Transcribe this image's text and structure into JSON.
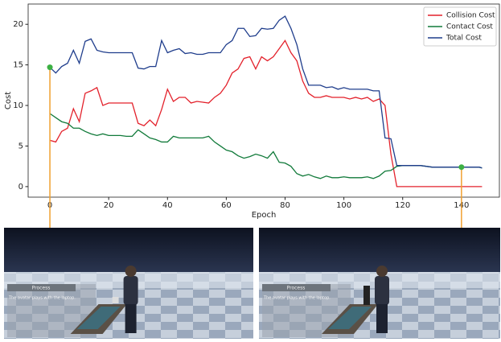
{
  "chart_data": {
    "type": "line",
    "x_label": "Epoch",
    "y_label": "Cost",
    "x": [
      0,
      2,
      4,
      6,
      8,
      10,
      12,
      14,
      16,
      18,
      20,
      22,
      24,
      26,
      28,
      30,
      32,
      34,
      36,
      38,
      40,
      42,
      44,
      46,
      48,
      50,
      52,
      54,
      56,
      58,
      60,
      62,
      64,
      66,
      68,
      70,
      72,
      74,
      76,
      78,
      80,
      82,
      84,
      86,
      88,
      90,
      92,
      94,
      96,
      98,
      100,
      102,
      104,
      106,
      108,
      110,
      112,
      114,
      116,
      118,
      120,
      122,
      124,
      126,
      128,
      130,
      132,
      134,
      136,
      138,
      140,
      142,
      144,
      146,
      147
    ],
    "series": [
      {
        "name": "Collision Cost",
        "color": "#e3212b",
        "values": [
          5.7,
          5.5,
          6.8,
          7.2,
          9.6,
          8.0,
          11.5,
          11.8,
          12.2,
          10.0,
          10.3,
          10.3,
          10.3,
          10.3,
          10.3,
          7.8,
          7.5,
          8.2,
          7.5,
          9.5,
          12.0,
          10.5,
          11.0,
          11.0,
          10.3,
          10.5,
          10.4,
          10.3,
          11.0,
          11.5,
          12.5,
          14.0,
          14.5,
          15.8,
          16.0,
          14.5,
          16.0,
          15.5,
          16.0,
          17.0,
          18.0,
          16.5,
          15.5,
          13.0,
          11.5,
          11.0,
          11.0,
          11.2,
          11.0,
          11.0,
          11.0,
          10.8,
          11.0,
          10.8,
          11.0,
          10.5,
          10.8,
          10.0,
          4.0,
          0,
          0,
          0,
          0,
          0,
          0,
          0,
          0,
          0,
          0,
          0,
          0,
          0,
          0,
          0,
          0
        ]
      },
      {
        "name": "Contact Cost",
        "color": "#117a3a",
        "values": [
          9.0,
          8.5,
          8.0,
          7.8,
          7.2,
          7.2,
          6.8,
          6.5,
          6.3,
          6.5,
          6.3,
          6.3,
          6.3,
          6.2,
          6.2,
          7.0,
          6.5,
          6.0,
          5.8,
          5.5,
          5.5,
          6.2,
          6.0,
          6.0,
          6.0,
          6.0,
          6.0,
          6.2,
          5.5,
          5.0,
          4.5,
          4.3,
          3.8,
          3.5,
          3.7,
          4.0,
          3.8,
          3.5,
          4.3,
          3.0,
          2.9,
          2.5,
          1.6,
          1.3,
          1.5,
          1.2,
          1.0,
          1.3,
          1.1,
          1.1,
          1.2,
          1.1,
          1.1,
          1.1,
          1.2,
          1.0,
          1.3,
          1.9,
          2.0,
          2.5,
          2.6,
          2.6,
          2.6,
          2.6,
          2.5,
          2.4,
          2.4,
          2.4,
          2.4,
          2.4,
          2.4,
          2.4,
          2.4,
          2.4,
          2.3
        ]
      },
      {
        "name": "Total Cost",
        "color": "#1f3d8c",
        "values": [
          14.7,
          14.0,
          14.8,
          15.2,
          16.8,
          15.2,
          17.9,
          18.2,
          16.8,
          16.6,
          16.5,
          16.5,
          16.5,
          16.5,
          16.5,
          14.6,
          14.5,
          14.8,
          14.8,
          18.0,
          16.5,
          16.8,
          17.0,
          16.4,
          16.5,
          16.3,
          16.3,
          16.5,
          16.5,
          16.5,
          17.5,
          18.0,
          19.5,
          19.5,
          18.5,
          18.6,
          19.5,
          19.4,
          19.5,
          20.5,
          21.0,
          19.5,
          17.5,
          14.5,
          12.5,
          12.5,
          12.5,
          12.2,
          12.3,
          12.0,
          12.2,
          12.0,
          12.0,
          12.0,
          12.0,
          11.8,
          11.8,
          6.0,
          5.9,
          2.6,
          2.6,
          2.6,
          2.6,
          2.6,
          2.5,
          2.4,
          2.4,
          2.4,
          2.4,
          2.4,
          2.4,
          2.4,
          2.4,
          2.4,
          2.3
        ]
      }
    ],
    "highlights": {
      "x": [
        0,
        140
      ],
      "values": [
        14.7,
        2.4
      ],
      "color": "#3cb043",
      "line_color": "#f0a030"
    },
    "xlim": [
      -7.4,
      152.9
    ],
    "ylim": [
      -1.3,
      22.5
    ],
    "xticks": [
      0,
      20,
      40,
      60,
      80,
      100,
      120,
      140
    ],
    "yticks": [
      0,
      5,
      10,
      15,
      20
    ],
    "legend": "upper right"
  },
  "panels": [
    {
      "caption": "Process",
      "text": "The avatar plays with the laptop."
    },
    {
      "caption": "Process",
      "text": "The avatar plays with the laptop."
    }
  ]
}
